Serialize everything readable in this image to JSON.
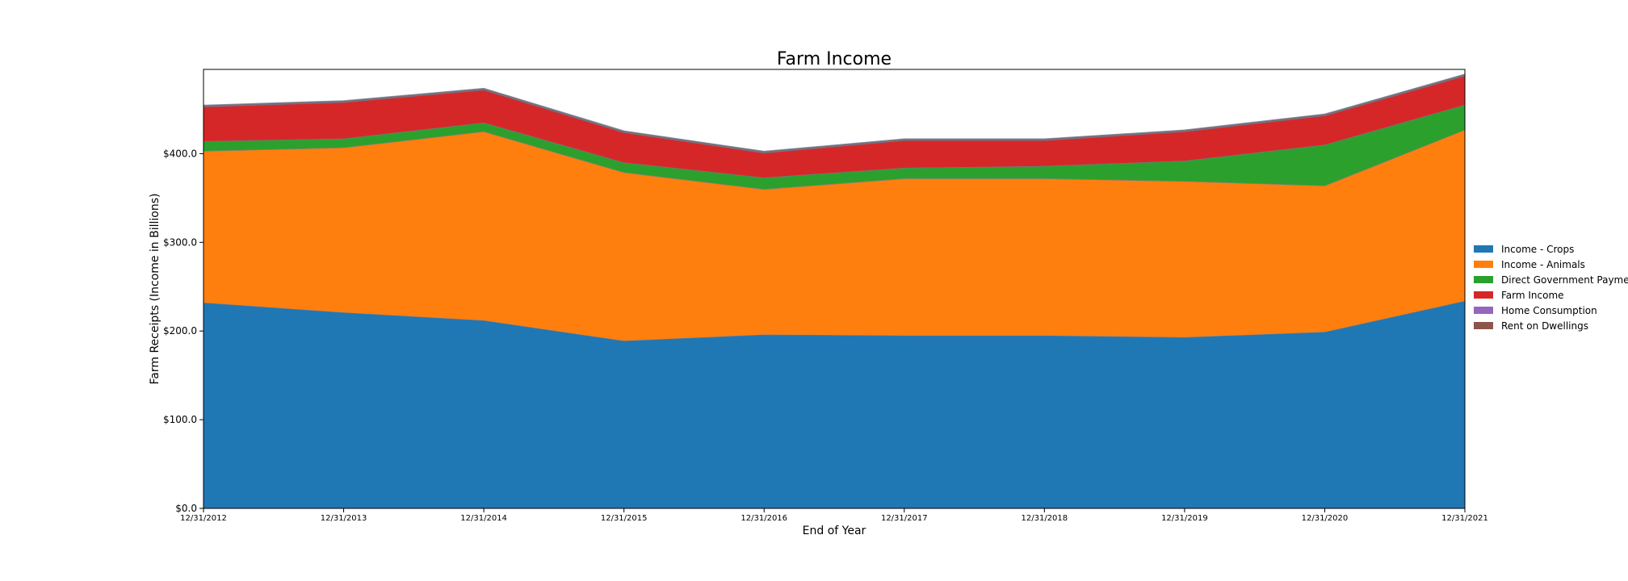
{
  "chart_data": {
    "type": "area",
    "stacked": true,
    "title": "Farm Income",
    "xlabel": "End of Year",
    "ylabel": "Farm Receipts (Income in Billions)",
    "x": [
      "12/31/2012",
      "12/31/2013",
      "12/31/2014",
      "12/31/2015",
      "12/31/2016",
      "12/31/2017",
      "12/31/2018",
      "12/31/2019",
      "12/31/2020",
      "12/31/2021"
    ],
    "ylim": [
      0,
      495
    ],
    "yticks": [
      0,
      100,
      200,
      300,
      400
    ],
    "ytick_labels": [
      "$0.0",
      "$100.0",
      "$200.0",
      "$300.0",
      "$400.0"
    ],
    "grid": false,
    "legend_placement": "right",
    "series": [
      {
        "name": "Income - Crops",
        "color": "#1f77b4",
        "values": [
          232,
          221,
          212,
          189,
          196,
          195,
          195,
          193,
          199,
          234
        ]
      },
      {
        "name": "Income - Animals",
        "color": "#ff7f0e",
        "values": [
          171,
          186,
          213,
          190,
          164,
          177,
          177,
          176,
          165,
          193
        ]
      },
      {
        "name": "Direct Government Payments",
        "color": "#2ca02c",
        "values": [
          11,
          10,
          10,
          11,
          13,
          12,
          14,
          23,
          46,
          28
        ]
      },
      {
        "name": "Farm Income",
        "color": "#d62728",
        "values": [
          39,
          41,
          37,
          34,
          28,
          31,
          29,
          33,
          33,
          33
        ]
      },
      {
        "name": "Home Consumption",
        "color": "#9467bd",
        "values": [
          0.5,
          0.5,
          0.5,
          0.5,
          0.5,
          0.5,
          0.5,
          0.5,
          0.5,
          0.5
        ]
      },
      {
        "name": "Rent on Dwellings",
        "color": "#8c564b",
        "values": [
          1,
          1,
          1,
          1,
          1,
          1,
          1,
          1,
          1,
          1
        ]
      }
    ]
  }
}
